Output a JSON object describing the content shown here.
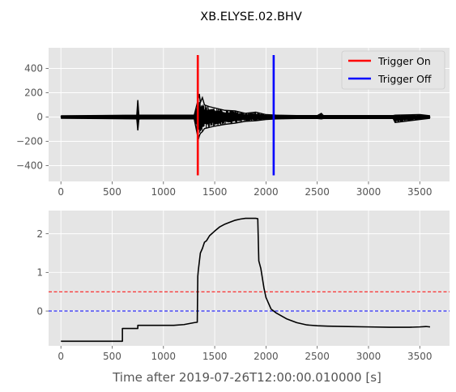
{
  "figure": {
    "title": "XB.ELYSE.02.BHV",
    "xlabel": "Time after 2019-07-26T12:00:00.010000 [s]"
  },
  "colors": {
    "axes_bg": "#E5E5E5",
    "grid": "#FFFFFF",
    "tick_text": "#555555",
    "trace": "#000000",
    "trigger_on": "#FF0000",
    "trigger_off": "#0000FF",
    "threshold_on": "#FF0000",
    "threshold_off": "#0000FF"
  },
  "chart_data": [
    {
      "type": "line",
      "name": "waveform",
      "xlim": [
        -120,
        3790
      ],
      "ylim": [
        -530,
        570
      ],
      "xticks": [
        0,
        500,
        1000,
        1500,
        2000,
        2500,
        3000,
        3500
      ],
      "yticks": [
        -400,
        -200,
        0,
        200,
        400
      ],
      "grid": true,
      "legend_position": "top-right",
      "legend": [
        {
          "label": "Trigger On",
          "color": "#FF0000"
        },
        {
          "label": "Trigger Off",
          "color": "#0000FF"
        }
      ],
      "triggers": [
        {
          "label": "Trigger On",
          "x": 1335,
          "ymin": -480,
          "ymax": 510,
          "color": "#FF0000"
        },
        {
          "label": "Trigger Off",
          "x": 2075,
          "ymin": -480,
          "ymax": 510,
          "color": "#0000FF"
        }
      ],
      "envelope": {
        "x": [
          0,
          740,
          750,
          760,
          770,
          1300,
          1340,
          1350,
          1360,
          1380,
          1400,
          1450,
          1500,
          1600,
          1700,
          1800,
          1900,
          2000,
          2100,
          2300,
          2500,
          2540,
          2560,
          3000,
          3240,
          3260,
          3500,
          3600
        ],
        "top": [
          10,
          15,
          140,
          20,
          15,
          15,
          150,
          190,
          120,
          160,
          100,
          85,
          75,
          55,
          50,
          30,
          40,
          20,
          15,
          12,
          12,
          30,
          12,
          12,
          12,
          15,
          20,
          10
        ],
        "bottom": [
          -10,
          -15,
          -110,
          -20,
          -15,
          -15,
          -185,
          -155,
          -135,
          -120,
          -95,
          -85,
          -75,
          -60,
          -50,
          -35,
          -30,
          -20,
          -15,
          -12,
          -12,
          -15,
          -12,
          -12,
          -12,
          -45,
          -20,
          -10
        ]
      }
    },
    {
      "type": "line",
      "name": "characteristic function",
      "xlim": [
        -120,
        3790
      ],
      "ylim": [
        -0.9,
        2.6
      ],
      "xticks": [
        0,
        500,
        1000,
        1500,
        2000,
        2500,
        3000,
        3500
      ],
      "yticks": [
        0,
        1,
        2
      ],
      "grid": true,
      "thresholds": [
        {
          "label": "on",
          "y": 0.5,
          "color": "#FF0000",
          "style": "dashed"
        },
        {
          "label": "off",
          "y": 0.0,
          "color": "#0000FF",
          "style": "dashed"
        }
      ],
      "x": [
        0,
        600,
        600,
        610,
        750,
        750,
        760,
        1000,
        1100,
        1200,
        1300,
        1330,
        1335,
        1340,
        1360,
        1380,
        1400,
        1420,
        1450,
        1500,
        1550,
        1600,
        1650,
        1700,
        1750,
        1800,
        1900,
        1920,
        1930,
        1950,
        1980,
        2000,
        2050,
        2100,
        2200,
        2300,
        2400,
        2500,
        2600,
        2800,
        3000,
        3200,
        3400,
        3500,
        3560,
        3600
      ],
      "y": [
        -0.78,
        -0.78,
        -0.45,
        -0.45,
        -0.45,
        -0.37,
        -0.37,
        -0.37,
        -0.37,
        -0.35,
        -0.3,
        -0.29,
        0.9,
        1.05,
        1.5,
        1.62,
        1.78,
        1.82,
        1.95,
        2.07,
        2.18,
        2.25,
        2.3,
        2.35,
        2.38,
        2.4,
        2.4,
        2.39,
        1.3,
        1.1,
        0.6,
        0.35,
        0.05,
        -0.05,
        -0.2,
        -0.3,
        -0.36,
        -0.38,
        -0.39,
        -0.4,
        -0.41,
        -0.42,
        -0.42,
        -0.41,
        -0.4,
        -0.41
      ]
    }
  ]
}
